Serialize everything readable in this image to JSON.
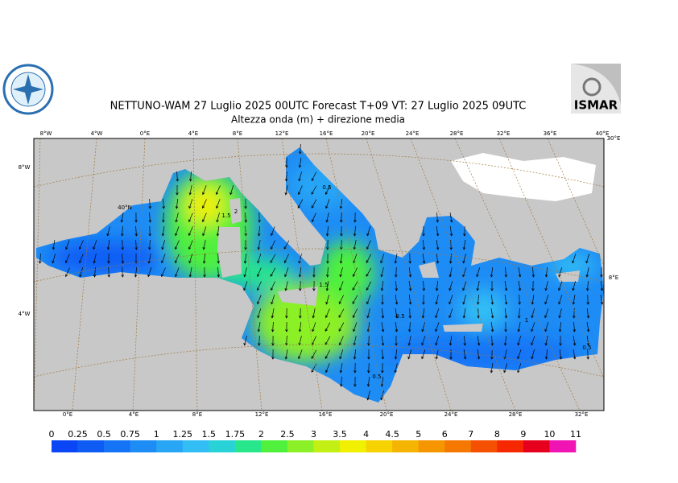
{
  "header": {
    "title": "NETTUNO-WAM  27  Luglio   2025 00UTC Forecast T+09 VT: 27  Luglio   2025 09UTC",
    "subtitle": "Altezza onda (m) + direzione media",
    "logo_right": "ISMAR"
  },
  "map": {
    "top_labels": [
      "8°W",
      "4°W",
      "0°E",
      "4°E",
      "8°E",
      "12°E",
      "16°E",
      "20°E",
      "24°E",
      "28°E",
      "32°E",
      "36°E",
      "40°E"
    ],
    "bottom_labels": [
      "0°E",
      "4°E",
      "8°E",
      "12°E",
      "16°E",
      "20°E",
      "24°E",
      "28°E",
      "32°E"
    ],
    "left_labels": [
      "8°W",
      "40°N",
      "4°W"
    ],
    "right_labels": [
      "30°E",
      "8°E"
    ],
    "contour_labels": [
      2,
      1.5,
      0.5,
      1.5,
      0.5,
      1,
      0.5,
      0.5
    ]
  },
  "colorbar": {
    "levels": [
      0,
      0.25,
      0.5,
      0.75,
      1,
      1.25,
      1.5,
      1.75,
      2,
      2.5,
      3,
      3.5,
      4,
      4.5,
      5,
      6,
      7,
      8,
      9,
      10,
      11
    ],
    "colors": [
      "#0a46f5",
      "#0f5cf5",
      "#1474f5",
      "#1e8cf5",
      "#28a5f5",
      "#32bef5",
      "#28d2d7",
      "#28e68c",
      "#50f03c",
      "#8cf028",
      "#c3f014",
      "#f0f000",
      "#f5d200",
      "#f5b400",
      "#f59600",
      "#f57800",
      "#f55000",
      "#f52800",
      "#e6001e",
      "#f014b4"
    ]
  }
}
